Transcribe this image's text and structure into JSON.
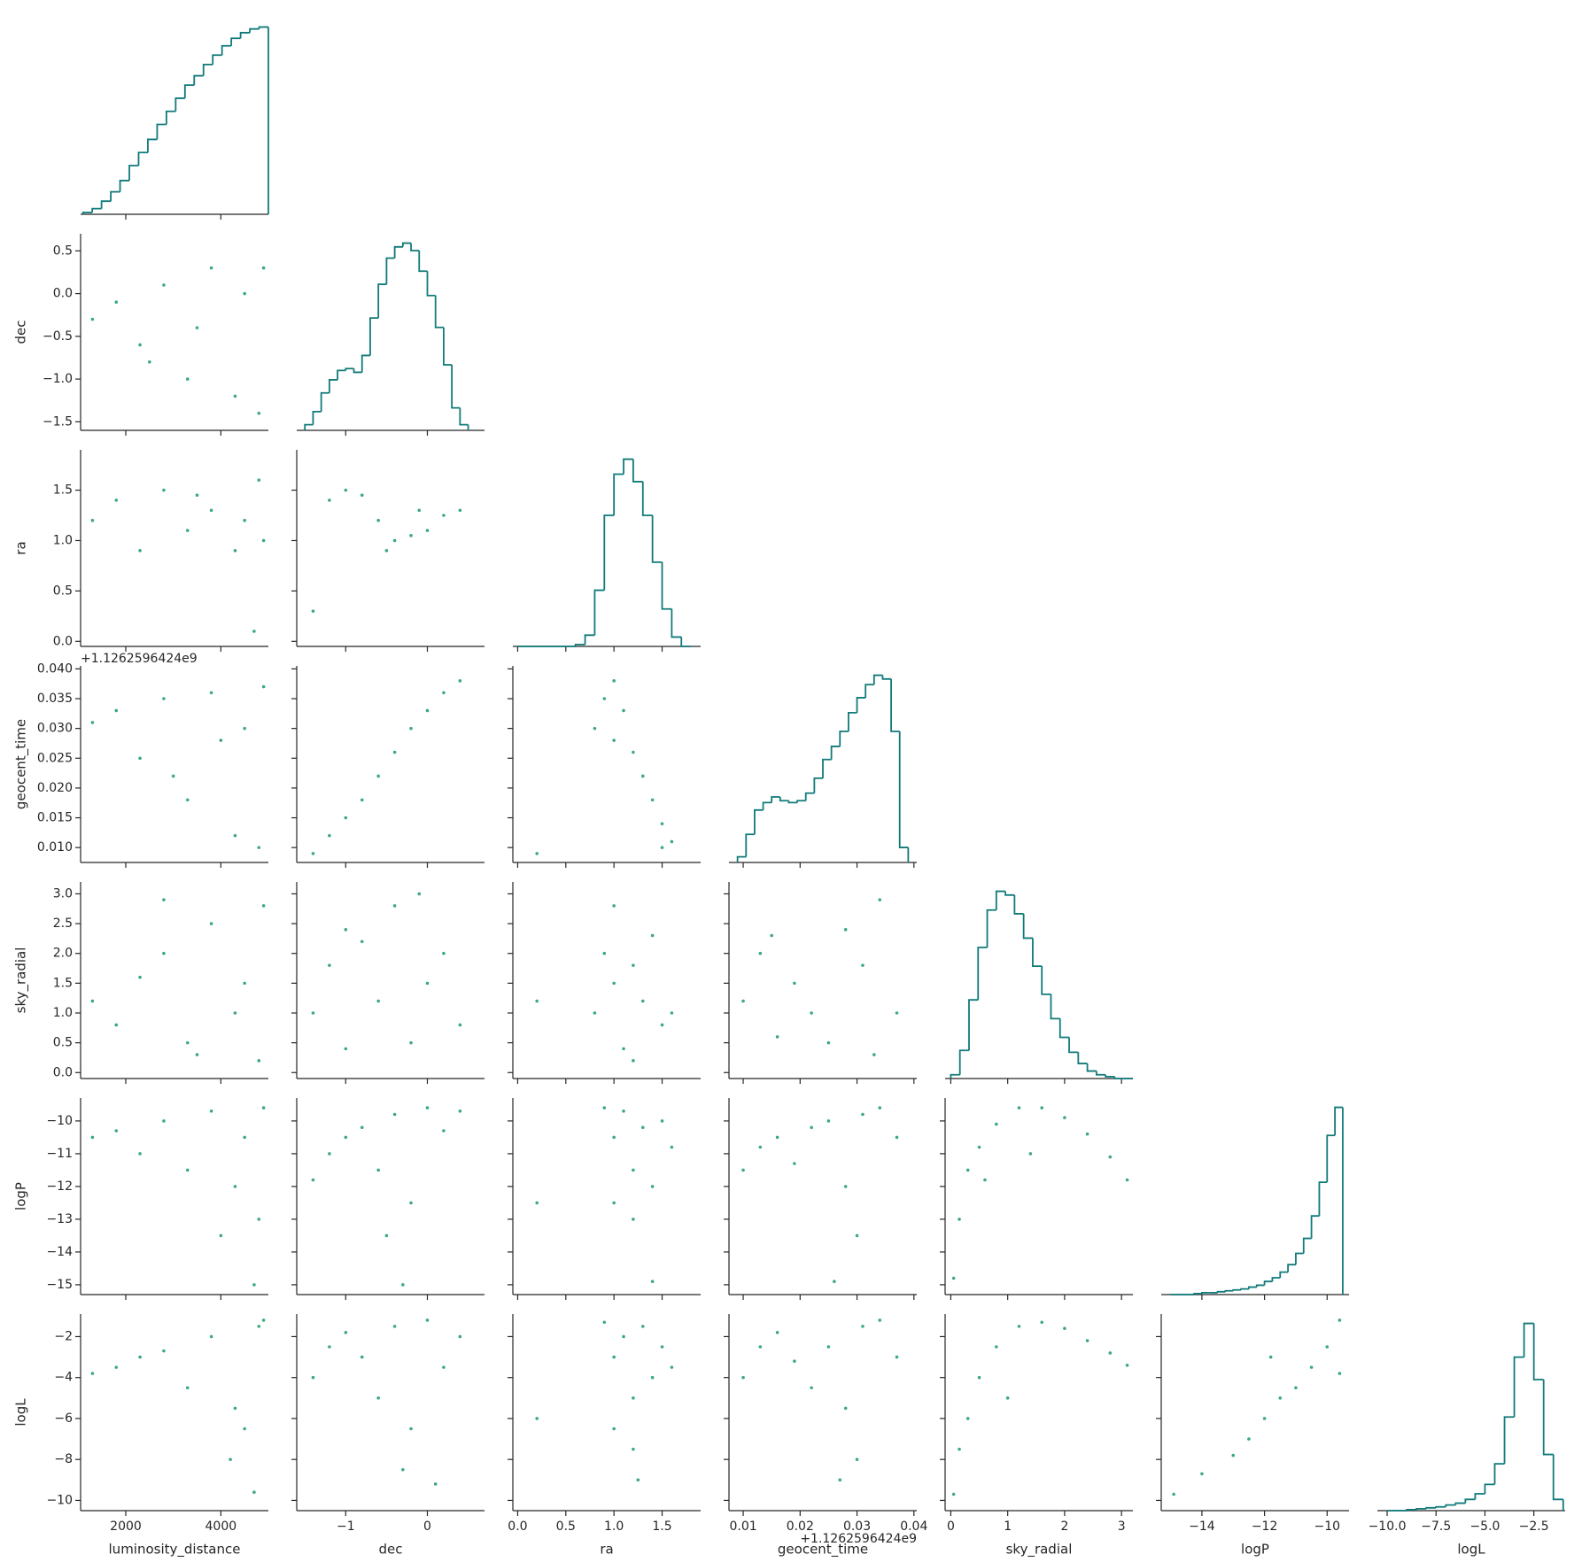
{
  "chart_data": {
    "type": "corner",
    "color": "#3bab79",
    "hist_color": "#117a7a",
    "variables": [
      {
        "name": "luminosity_distance",
        "lim": [
          1050,
          5000
        ],
        "xticks": [
          2000,
          4000
        ]
      },
      {
        "name": "dec",
        "lim": [
          -1.6,
          0.7
        ],
        "xticks": [
          {
            "value": -1,
            "label": "−1"
          },
          0
        ],
        "yticks": [
          {
            "value": -1.5,
            "label": "−1.5"
          },
          {
            "value": -1,
            "label": "−1.0"
          },
          {
            "value": -0.5,
            "label": "−0.5"
          },
          {
            "value": 0,
            "label": "0.0"
          },
          0.5
        ]
      },
      {
        "name": "ra",
        "lim": [
          -0.05,
          1.9
        ],
        "xticks": [
          {
            "value": 0,
            "label": "0.0"
          },
          0.5,
          {
            "value": 1,
            "label": "1.0"
          },
          1.5
        ],
        "yticks": [
          {
            "value": 0,
            "label": "0.0"
          },
          0.5,
          {
            "value": 1,
            "label": "1.0"
          },
          1.5
        ]
      },
      {
        "name": "geocent_time",
        "lim": [
          0.0075,
          0.0405
        ],
        "offset": "+1.1262596424e9",
        "xticks": [
          0.01,
          0.02,
          0.03,
          0.04
        ],
        "yticks": [
          {
            "value": 0.01,
            "label": "0.010"
          },
          0.015,
          {
            "value": 0.02,
            "label": "0.020"
          },
          0.025,
          {
            "value": 0.03,
            "label": "0.030"
          },
          0.035,
          {
            "value": 0.04,
            "label": "0.040"
          }
        ]
      },
      {
        "name": "sky_radial",
        "lim": [
          -0.1,
          3.2
        ],
        "xticks": [
          0,
          1,
          2,
          3
        ],
        "yticks": [
          {
            "value": 0,
            "label": "0.0"
          },
          0.5,
          {
            "value": 1,
            "label": "1.0"
          },
          1.5,
          {
            "value": 2,
            "label": "2.0"
          },
          2.5,
          {
            "value": 3,
            "label": "3.0"
          }
        ]
      },
      {
        "name": "logP",
        "lim": [
          -15.3,
          -9.3
        ],
        "xticks": [
          {
            "value": -14,
            "label": "−14"
          },
          {
            "value": -12,
            "label": "−12"
          },
          {
            "value": -10,
            "label": "−10"
          }
        ],
        "yticks": [
          {
            "value": -15,
            "label": "−15"
          },
          {
            "value": -14,
            "label": "−14"
          },
          {
            "value": -13,
            "label": "−13"
          },
          {
            "value": -12,
            "label": "−12"
          },
          {
            "value": -11,
            "label": "−11"
          },
          {
            "value": -10,
            "label": "−10"
          }
        ]
      },
      {
        "name": "logL",
        "lim": [
          -10.5,
          -0.9
        ],
        "xticks": [
          {
            "value": -10,
            "label": "−10.0"
          },
          {
            "value": -7.5,
            "label": "−7.5"
          },
          {
            "value": -5,
            "label": "−5.0"
          },
          {
            "value": -2.5,
            "label": "−2.5"
          }
        ],
        "yticks": [
          {
            "value": -10,
            "label": "−10"
          },
          {
            "value": -8,
            "label": "−8"
          },
          {
            "value": -6,
            "label": "−6"
          },
          {
            "value": -4,
            "label": "−4"
          },
          {
            "value": -2,
            "label": "−2"
          }
        ]
      }
    ],
    "histograms": [
      {
        "bins": [
          1100,
          1295,
          1490,
          1685,
          1880,
          2075,
          2270,
          2465,
          2660,
          2855,
          3050,
          3245,
          3440,
          3635,
          3830,
          4025,
          4220,
          4415,
          4610,
          4805,
          5000
        ],
        "counts": [
          1,
          3,
          7,
          12,
          18,
          26,
          33,
          40,
          48,
          55,
          62,
          69,
          74,
          80,
          85,
          90,
          94,
          97,
          99,
          100
        ]
      },
      {
        "bins": [
          -1.5,
          -1.4,
          -1.3,
          -1.2,
          -1.1,
          -1.0,
          -0.9,
          -0.8,
          -0.7,
          -0.6,
          -0.5,
          -0.4,
          -0.3,
          -0.2,
          -0.1,
          0.0,
          0.1,
          0.2,
          0.3,
          0.4,
          0.5
        ],
        "counts": [
          3,
          10,
          20,
          27,
          32,
          33,
          31,
          40,
          60,
          78,
          92,
          98,
          100,
          96,
          85,
          72,
          55,
          35,
          12,
          3
        ]
      },
      {
        "bins": [
          0,
          0.1,
          0.2,
          0.3,
          0.4,
          0.5,
          0.6,
          0.7,
          0.8,
          0.9,
          1.0,
          1.1,
          1.2,
          1.3,
          1.4,
          1.5,
          1.6,
          1.7,
          1.8
        ],
        "counts": [
          0,
          0,
          0,
          0,
          0,
          0,
          1,
          6,
          30,
          70,
          92,
          100,
          88,
          70,
          45,
          20,
          5,
          0
        ]
      },
      {
        "bins": [
          0.009,
          0.0105,
          0.012,
          0.0135,
          0.015,
          0.0165,
          0.018,
          0.0195,
          0.021,
          0.0225,
          0.024,
          0.0255,
          0.027,
          0.0285,
          0.03,
          0.0315,
          0.033,
          0.0345,
          0.036,
          0.0375,
          0.039
        ],
        "counts": [
          3,
          15,
          28,
          32,
          35,
          33,
          32,
          33,
          37,
          45,
          55,
          62,
          70,
          80,
          88,
          95,
          100,
          98,
          70,
          8
        ]
      },
      {
        "bins": [
          0,
          0.16,
          0.32,
          0.48,
          0.64,
          0.8,
          0.96,
          1.12,
          1.28,
          1.44,
          1.6,
          1.76,
          1.92,
          2.08,
          2.24,
          2.4,
          2.56,
          2.72,
          2.88,
          3.04,
          3.2
        ],
        "counts": [
          2,
          15,
          42,
          70,
          90,
          100,
          98,
          88,
          75,
          60,
          45,
          32,
          22,
          14,
          8,
          4,
          2,
          1,
          0,
          0
        ]
      },
      {
        "bins": [
          -15,
          -14.75,
          -14.5,
          -14.25,
          -14,
          -13.75,
          -13.5,
          -13.25,
          -13,
          -12.75,
          -12.5,
          -12.25,
          -12,
          -11.75,
          -11.5,
          -11.25,
          -11,
          -10.75,
          -10.5,
          -10.25,
          -10,
          -9.75,
          -9.5
        ],
        "counts": [
          0,
          0,
          0,
          0.5,
          1,
          1,
          1.5,
          2,
          2.5,
          3,
          4,
          5,
          7,
          9,
          12,
          16,
          22,
          30,
          42,
          60,
          85,
          100
        ]
      },
      {
        "bins": [
          -10,
          -9.5,
          -9,
          -8.5,
          -8,
          -7.5,
          -7,
          -6.5,
          -6,
          -5.5,
          -5,
          -4.5,
          -4,
          -3.5,
          -3,
          -2.5,
          -2,
          -1.5,
          -1
        ],
        "counts": [
          0,
          0,
          0.5,
          1,
          1.5,
          2,
          3,
          4,
          6,
          9,
          14,
          25,
          50,
          82,
          100,
          70,
          30,
          6
        ]
      }
    ],
    "scatter": [
      {
        "x": [
          1300,
          1800,
          2300,
          2800,
          3300,
          3800,
          4300,
          4800,
          4900,
          4500,
          3500,
          2500
        ],
        "y": [
          -0.3,
          -0.1,
          -0.6,
          0.1,
          -1.0,
          0.3,
          -1.2,
          -1.4,
          0.3,
          0.0,
          -0.4,
          -0.8
        ]
      },
      {
        "x": [
          1300,
          1800,
          2300,
          2800,
          3300,
          3800,
          4300,
          4800,
          4900,
          4500,
          3500,
          4700
        ],
        "y": [
          1.2,
          1.4,
          0.9,
          1.5,
          1.1,
          1.3,
          0.9,
          1.6,
          1.0,
          1.2,
          1.45,
          0.1
        ]
      },
      {
        "x": [
          -1.4,
          -1.2,
          -1.0,
          -0.8,
          -0.6,
          -0.4,
          -0.2,
          0.0,
          0.2,
          0.4,
          -0.5,
          -0.1
        ],
        "y": [
          0.3,
          1.4,
          1.5,
          1.45,
          1.2,
          1.0,
          1.05,
          1.1,
          1.25,
          1.3,
          0.9,
          1.3
        ]
      },
      {
        "x": [
          1300,
          1800,
          2300,
          2800,
          3300,
          3800,
          4300,
          4800,
          4900,
          4500,
          3000,
          4000
        ],
        "y": [
          0.031,
          0.033,
          0.025,
          0.035,
          0.018,
          0.036,
          0.012,
          0.01,
          0.037,
          0.03,
          0.022,
          0.028
        ]
      },
      {
        "x": [
          -1.4,
          -1.2,
          -1.0,
          -0.8,
          -0.6,
          -0.4,
          -0.2,
          0.0,
          0.2,
          0.4
        ],
        "y": [
          0.009,
          0.012,
          0.015,
          0.018,
          0.022,
          0.026,
          0.03,
          0.033,
          0.036,
          0.038
        ]
      },
      {
        "x": [
          0.8,
          0.9,
          1.0,
          1.1,
          1.2,
          1.3,
          1.4,
          1.5,
          1.6,
          1.5,
          1.0,
          0.2
        ],
        "y": [
          0.03,
          0.035,
          0.038,
          0.033,
          0.026,
          0.022,
          0.018,
          0.014,
          0.011,
          0.01,
          0.028,
          0.009
        ]
      },
      {
        "x": [
          1300,
          1800,
          2300,
          2800,
          3300,
          3800,
          4300,
          4800,
          4900,
          4500,
          3500,
          2800
        ],
        "y": [
          1.2,
          0.8,
          1.6,
          2.0,
          0.5,
          2.5,
          1.0,
          0.2,
          2.8,
          1.5,
          0.3,
          2.9
        ]
      },
      {
        "x": [
          -1.4,
          -1.2,
          -1.0,
          -0.8,
          -0.6,
          -0.4,
          -0.2,
          0.0,
          0.2,
          0.4,
          -0.1,
          -1.0
        ],
        "y": [
          1.0,
          1.8,
          0.4,
          2.2,
          1.2,
          2.8,
          0.5,
          1.5,
          2.0,
          0.8,
          3.0,
          2.4
        ]
      },
      {
        "x": [
          0.8,
          0.9,
          1.0,
          1.1,
          1.2,
          1.3,
          1.4,
          1.5,
          1.6,
          1.0,
          1.2,
          0.2
        ],
        "y": [
          1.0,
          2.0,
          2.8,
          0.4,
          1.8,
          1.2,
          2.3,
          0.8,
          1.0,
          1.5,
          0.2,
          1.2
        ]
      },
      {
        "x": [
          0.01,
          0.013,
          0.016,
          0.019,
          0.022,
          0.025,
          0.028,
          0.031,
          0.034,
          0.037,
          0.033,
          0.015
        ],
        "y": [
          1.2,
          2.0,
          0.6,
          1.5,
          1.0,
          0.5,
          2.4,
          1.8,
          2.9,
          1.0,
          0.3,
          2.3
        ]
      },
      {
        "x": [
          1300,
          1800,
          2300,
          2800,
          3300,
          3800,
          4300,
          4800,
          4900,
          4500,
          4000,
          4700
        ],
        "y": [
          -10.5,
          -10.3,
          -11.0,
          -10.0,
          -11.5,
          -9.7,
          -12.0,
          -13.0,
          -9.6,
          -10.5,
          -13.5,
          -15.0
        ]
      },
      {
        "x": [
          -1.4,
          -1.2,
          -1.0,
          -0.8,
          -0.6,
          -0.4,
          -0.2,
          0.0,
          0.2,
          0.4,
          -0.5,
          -0.3
        ],
        "y": [
          -11.8,
          -11.0,
          -10.5,
          -10.2,
          -11.5,
          -9.8,
          -12.5,
          -9.6,
          -10.3,
          -9.7,
          -13.5,
          -15.0
        ]
      },
      {
        "x": [
          0.9,
          1.0,
          1.1,
          1.2,
          1.3,
          1.4,
          1.5,
          1.6,
          1.2,
          1.0,
          1.4,
          0.2
        ],
        "y": [
          -9.6,
          -10.5,
          -9.7,
          -11.5,
          -10.2,
          -12.0,
          -10.0,
          -10.8,
          -13.0,
          -12.5,
          -14.9,
          -12.5
        ]
      },
      {
        "x": [
          0.01,
          0.013,
          0.016,
          0.019,
          0.022,
          0.025,
          0.028,
          0.031,
          0.034,
          0.037,
          0.03,
          0.026
        ],
        "y": [
          -11.5,
          -10.8,
          -10.5,
          -11.3,
          -10.2,
          -10.0,
          -12.0,
          -9.8,
          -9.6,
          -10.5,
          -13.5,
          -14.9
        ]
      },
      {
        "x": [
          0.05,
          0.15,
          0.3,
          0.5,
          0.8,
          1.2,
          1.6,
          2.0,
          2.4,
          2.8,
          3.1,
          0.6,
          1.4
        ],
        "y": [
          -14.8,
          -13.0,
          -11.5,
          -10.8,
          -10.1,
          -9.6,
          -9.6,
          -9.9,
          -10.4,
          -11.1,
          -11.8,
          -11.8,
          -11.0
        ]
      },
      {
        "x": [
          1300,
          1800,
          2300,
          2800,
          3300,
          3800,
          4300,
          4800,
          4900,
          4500,
          4200,
          4700
        ],
        "y": [
          -3.8,
          -3.5,
          -3.0,
          -2.7,
          -4.5,
          -2.0,
          -5.5,
          -1.5,
          -1.2,
          -6.5,
          -8.0,
          -9.6
        ]
      },
      {
        "x": [
          -1.4,
          -1.2,
          -1.0,
          -0.8,
          -0.6,
          -0.4,
          -0.2,
          0.0,
          0.2,
          0.4,
          -0.3,
          0.1
        ],
        "y": [
          -4.0,
          -2.5,
          -1.8,
          -3.0,
          -5.0,
          -1.5,
          -6.5,
          -1.2,
          -3.5,
          -2.0,
          -8.5,
          -9.2
        ]
      },
      {
        "x": [
          0.9,
          1.0,
          1.1,
          1.2,
          1.3,
          1.4,
          1.5,
          1.6,
          1.2,
          1.0,
          1.25,
          0.2
        ],
        "y": [
          -1.3,
          -3.0,
          -2.0,
          -5.0,
          -1.5,
          -4.0,
          -2.5,
          -3.5,
          -7.5,
          -6.5,
          -9.0,
          -6.0
        ]
      },
      {
        "x": [
          0.01,
          0.013,
          0.016,
          0.019,
          0.022,
          0.025,
          0.028,
          0.031,
          0.034,
          0.037,
          0.03,
          0.027
        ],
        "y": [
          -4.0,
          -2.5,
          -1.8,
          -3.2,
          -4.5,
          -2.5,
          -5.5,
          -1.5,
          -1.2,
          -3.0,
          -8.0,
          -9.0
        ]
      },
      {
        "x": [
          0.05,
          0.15,
          0.3,
          0.5,
          0.8,
          1.2,
          1.6,
          2.0,
          2.4,
          2.8,
          3.1,
          1.0
        ],
        "y": [
          -9.7,
          -7.5,
          -6.0,
          -4.0,
          -2.5,
          -1.5,
          -1.3,
          -1.6,
          -2.2,
          -2.8,
          -3.4,
          -5.0
        ]
      },
      {
        "x": [
          -14.9,
          -14,
          -13,
          -12.5,
          -12,
          -11.5,
          -11,
          -10.5,
          -10,
          -9.6,
          -9.6,
          -11.8
        ],
        "y": [
          -9.7,
          -8.7,
          -7.8,
          -7.0,
          -6.0,
          -5.0,
          -4.5,
          -3.5,
          -2.5,
          -1.2,
          -3.8,
          -3.0
        ]
      }
    ]
  }
}
